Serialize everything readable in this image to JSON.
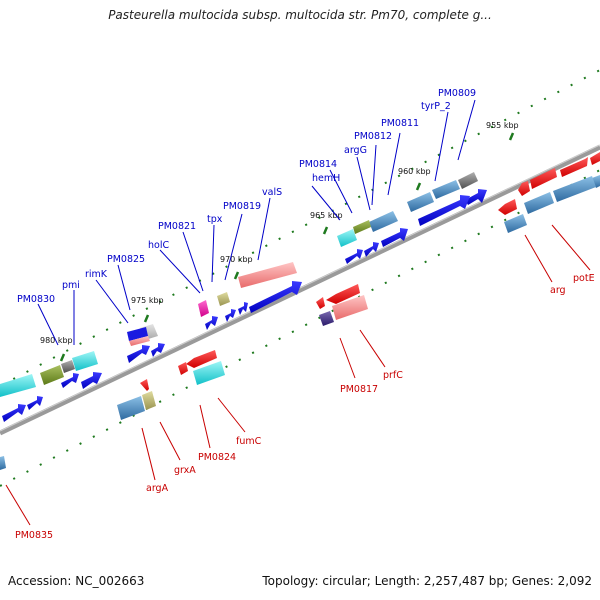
{
  "title": "Pasteurella multocida subsp. multocida str. Pm70, complete g...",
  "footer": {
    "accession": "Accession: NC_002663",
    "summary": "Topology: circular; Length: 2,257,487 bp; Genes: 2,092"
  },
  "scale_ticks": [
    "955 kbp",
    "960 kbp",
    "965 kbp",
    "970 kbp",
    "975 kbp",
    "980 kbp"
  ],
  "plus_strand_genes": [
    "PM0809",
    "tyrP_2",
    "PM0811",
    "PM0812",
    "argG",
    "PM0814",
    "hemH",
    "valS",
    "PM0819",
    "tpx",
    "PM0821",
    "holC",
    "PM0825",
    "rimK",
    "pmi",
    "PM0830"
  ],
  "minus_strand_genes": [
    "potE",
    "arg",
    "prfC",
    "PM0817",
    "fumC",
    "PM0824",
    "grxA",
    "argA",
    "PM0835"
  ],
  "colors": {
    "plus_label": "#0000c8",
    "minus_label": "#c80000",
    "backbone": "#7a7a7a",
    "tick": "#1f7a1f"
  }
}
